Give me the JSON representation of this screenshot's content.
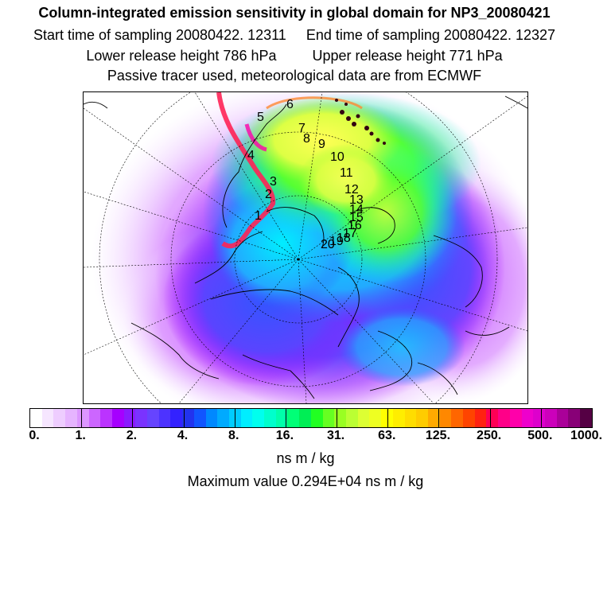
{
  "titles": {
    "line1": "Column-integrated emission sensitivity in global domain for NP3_20080421",
    "start": "Start time of sampling 20080422. 12311",
    "end": "End time of sampling 20080422. 12327",
    "lower": "Lower release height  786 hPa",
    "upper": "Upper release height  771 hPa",
    "line4": "Passive tracer used, meteorological data are from ECMWF"
  },
  "colorbar": {
    "labels": [
      "0.",
      "1.",
      "2.",
      "4.",
      "8.",
      "16.",
      "31.",
      "63.",
      "125.",
      "250.",
      "500.",
      "1000."
    ],
    "colors": [
      "#ffffff",
      "#f6e6ff",
      "#eecdff",
      "#e6b4ff",
      "#dc96ff",
      "#cc66ff",
      "#bb33ff",
      "#a600ff",
      "#8a1aff",
      "#7a33ff",
      "#6644ff",
      "#4d33ff",
      "#3322ff",
      "#2233ee",
      "#1155ff",
      "#0088ff",
      "#00aaff",
      "#00ccff",
      "#00eeff",
      "#00ffee",
      "#00ffcc",
      "#00ffaa",
      "#00ff77",
      "#00ee55",
      "#22ff22",
      "#66ff22",
      "#99ff22",
      "#bbff33",
      "#ddff33",
      "#eeff22",
      "#ffff00",
      "#ffee00",
      "#ffdd00",
      "#ffcc00",
      "#ffaa00",
      "#ff8800",
      "#ff6600",
      "#ff4400",
      "#ff2211",
      "#ff0055",
      "#ff0088",
      "#ff00aa",
      "#ee00cc",
      "#dd00cc",
      "#cc00bb",
      "#aa0099",
      "#880077",
      "#550044"
    ],
    "units": "ns m / kg",
    "max_value": "Maximum value  0.294E+04 ns m / kg"
  },
  "map": {
    "projection": "polar stereographic",
    "point_labels": [
      "1",
      "2",
      "3",
      "4",
      "5",
      "6",
      "7",
      "8",
      "9",
      "10",
      "11",
      "12",
      "13",
      "14",
      "15",
      "16",
      "17",
      "18",
      "19",
      "20"
    ]
  }
}
